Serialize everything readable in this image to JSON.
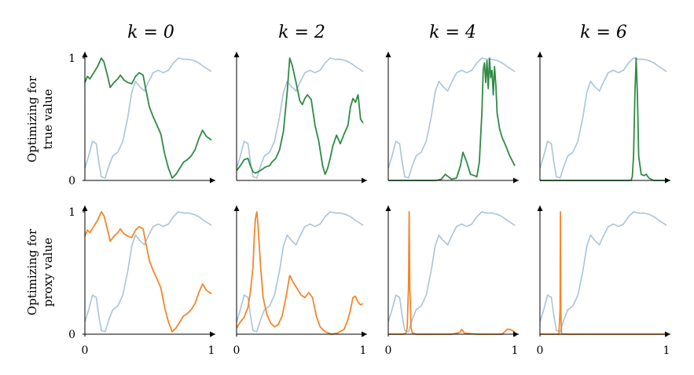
{
  "column_titles": [
    "k = 0",
    "k = 2",
    "k = 4",
    "k = 6"
  ],
  "row_labels": [
    {
      "line1": "Optimizing for",
      "line2": "true value"
    },
    {
      "line1": "Optimizing for",
      "line2": "proxy value"
    }
  ],
  "y_ticks": [
    "1",
    "0"
  ],
  "x_ticks": [
    "0",
    "1"
  ],
  "colors": {
    "reference": "#a9c4d8",
    "true_value": "#2e8b45",
    "proxy_value": "#f5862a",
    "axis": "#000000"
  },
  "chart_data": {
    "type": "line",
    "layout": "2x4 small multiples",
    "xlim": [
      0,
      1
    ],
    "ylim": [
      0,
      1
    ],
    "reference_curve": {
      "x": [
        0,
        0.03,
        0.06,
        0.09,
        0.11,
        0.13,
        0.16,
        0.19,
        0.22,
        0.26,
        0.3,
        0.34,
        0.37,
        0.4,
        0.43,
        0.47,
        0.5,
        0.54,
        0.58,
        0.62,
        0.66,
        0.7,
        0.74,
        0.78,
        0.82,
        0.86,
        0.9,
        0.94,
        0.97,
        1.0
      ],
      "y": [
        0.1,
        0.2,
        0.32,
        0.3,
        0.15,
        0.03,
        0.02,
        0.12,
        0.2,
        0.23,
        0.32,
        0.52,
        0.72,
        0.81,
        0.77,
        0.73,
        0.8,
        0.88,
        0.9,
        0.88,
        0.9,
        0.96,
        1.0,
        0.99,
        0.99,
        0.98,
        0.96,
        0.93,
        0.91,
        0.89
      ]
    },
    "panels": [
      {
        "row": 0,
        "col": 0,
        "name": "true value, k = 0",
        "x": [
          0,
          0.02,
          0.04,
          0.07,
          0.1,
          0.13,
          0.15,
          0.18,
          0.2,
          0.23,
          0.26,
          0.28,
          0.31,
          0.34,
          0.37,
          0.4,
          0.43,
          0.46,
          0.48,
          0.51,
          0.54,
          0.57,
          0.6,
          0.63,
          0.66,
          0.69,
          0.72,
          0.75,
          0.78,
          0.81,
          0.84,
          0.87,
          0.9,
          0.93,
          0.96,
          1.0
        ],
        "y": [
          0.8,
          0.85,
          0.83,
          0.88,
          0.93,
          1.0,
          0.97,
          0.85,
          0.76,
          0.8,
          0.83,
          0.86,
          0.82,
          0.8,
          0.79,
          0.85,
          0.88,
          0.86,
          0.75,
          0.6,
          0.52,
          0.45,
          0.38,
          0.22,
          0.1,
          0.02,
          0.05,
          0.1,
          0.15,
          0.17,
          0.2,
          0.25,
          0.34,
          0.41,
          0.36,
          0.33
        ]
      },
      {
        "row": 0,
        "col": 1,
        "name": "true value, k = 2",
        "x": [
          0,
          0.03,
          0.06,
          0.09,
          0.11,
          0.13,
          0.15,
          0.17,
          0.2,
          0.23,
          0.26,
          0.28,
          0.31,
          0.34,
          0.37,
          0.4,
          0.42,
          0.44,
          0.47,
          0.5,
          0.52,
          0.54,
          0.56,
          0.59,
          0.62,
          0.65,
          0.68,
          0.7,
          0.72,
          0.74,
          0.76,
          0.79,
          0.82,
          0.85,
          0.88,
          0.9,
          0.92,
          0.94,
          0.96,
          0.98,
          1.0
        ],
        "y": [
          0.08,
          0.12,
          0.17,
          0.18,
          0.12,
          0.07,
          0.06,
          0.07,
          0.09,
          0.11,
          0.12,
          0.15,
          0.18,
          0.25,
          0.4,
          0.72,
          1.0,
          0.94,
          0.8,
          0.65,
          0.62,
          0.67,
          0.7,
          0.66,
          0.45,
          0.32,
          0.12,
          0.05,
          0.1,
          0.18,
          0.28,
          0.37,
          0.3,
          0.38,
          0.45,
          0.6,
          0.67,
          0.64,
          0.7,
          0.5,
          0.47
        ]
      },
      {
        "row": 0,
        "col": 2,
        "name": "true value, k = 4",
        "x": [
          0,
          0.1,
          0.2,
          0.3,
          0.38,
          0.42,
          0.45,
          0.5,
          0.54,
          0.57,
          0.59,
          0.62,
          0.65,
          0.68,
          0.7,
          0.72,
          0.74,
          0.75,
          0.76,
          0.77,
          0.78,
          0.79,
          0.8,
          0.81,
          0.82,
          0.83,
          0.84,
          0.85,
          0.86,
          0.88,
          0.9,
          0.93,
          0.96,
          1.0
        ],
        "y": [
          0,
          0,
          0,
          0,
          0,
          0.01,
          0.05,
          0.01,
          0.02,
          0.12,
          0.23,
          0.15,
          0.05,
          0.04,
          0.03,
          0.15,
          0.55,
          0.9,
          0.96,
          0.8,
          0.98,
          0.75,
          1.0,
          0.84,
          0.9,
          0.7,
          0.93,
          0.78,
          0.55,
          0.42,
          0.35,
          0.28,
          0.2,
          0.12
        ]
      },
      {
        "row": 0,
        "col": 3,
        "name": "true value, k = 6",
        "x": [
          0,
          0.2,
          0.4,
          0.6,
          0.7,
          0.72,
          0.73,
          0.74,
          0.75,
          0.76,
          0.77,
          0.78,
          0.8,
          0.82,
          0.84,
          0.86,
          0.9,
          1.0
        ],
        "y": [
          0,
          0,
          0,
          0,
          0,
          0,
          0.03,
          0.2,
          0.7,
          1.0,
          0.7,
          0.2,
          0.05,
          0.04,
          0.05,
          0.02,
          0,
          0
        ]
      },
      {
        "row": 1,
        "col": 0,
        "name": "proxy value, k = 0",
        "x": [
          0,
          0.02,
          0.04,
          0.07,
          0.1,
          0.13,
          0.15,
          0.18,
          0.2,
          0.23,
          0.26,
          0.28,
          0.31,
          0.34,
          0.37,
          0.4,
          0.43,
          0.46,
          0.48,
          0.51,
          0.54,
          0.57,
          0.6,
          0.63,
          0.66,
          0.69,
          0.72,
          0.75,
          0.78,
          0.81,
          0.84,
          0.87,
          0.9,
          0.93,
          0.96,
          1.0
        ],
        "y": [
          0.8,
          0.85,
          0.83,
          0.88,
          0.93,
          1.0,
          0.97,
          0.85,
          0.76,
          0.8,
          0.83,
          0.86,
          0.82,
          0.8,
          0.79,
          0.85,
          0.88,
          0.86,
          0.75,
          0.6,
          0.52,
          0.45,
          0.38,
          0.22,
          0.1,
          0.02,
          0.05,
          0.1,
          0.15,
          0.17,
          0.2,
          0.25,
          0.34,
          0.41,
          0.36,
          0.33
        ]
      },
      {
        "row": 1,
        "col": 1,
        "name": "proxy value, k = 2",
        "x": [
          0,
          0.03,
          0.06,
          0.09,
          0.11,
          0.13,
          0.14,
          0.15,
          0.16,
          0.17,
          0.19,
          0.21,
          0.24,
          0.27,
          0.3,
          0.33,
          0.36,
          0.39,
          0.42,
          0.45,
          0.48,
          0.51,
          0.54,
          0.57,
          0.6,
          0.63,
          0.66,
          0.7,
          0.75,
          0.8,
          0.85,
          0.88,
          0.9,
          0.92,
          0.94,
          0.96,
          0.98,
          1.0
        ],
        "y": [
          0.05,
          0.1,
          0.14,
          0.22,
          0.35,
          0.55,
          0.8,
          0.95,
          1.0,
          0.88,
          0.55,
          0.3,
          0.16,
          0.09,
          0.06,
          0.08,
          0.15,
          0.3,
          0.48,
          0.42,
          0.37,
          0.32,
          0.3,
          0.34,
          0.3,
          0.15,
          0.06,
          0.02,
          0,
          0.01,
          0.04,
          0.12,
          0.2,
          0.3,
          0.31,
          0.26,
          0.24,
          0.25
        ]
      },
      {
        "row": 1,
        "col": 2,
        "name": "proxy value, k = 4",
        "x": [
          0,
          0.12,
          0.14,
          0.15,
          0.16,
          0.165,
          0.17,
          0.18,
          0.19,
          0.22,
          0.3,
          0.4,
          0.5,
          0.55,
          0.57,
          0.58,
          0.6,
          0.7,
          0.8,
          0.9,
          0.94,
          0.96,
          0.98,
          1.0
        ],
        "y": [
          0,
          0,
          0.01,
          0.05,
          0.4,
          1.0,
          0.4,
          0.05,
          0.01,
          0,
          0,
          0,
          0,
          0.01,
          0.02,
          0.04,
          0.01,
          0,
          0,
          0,
          0.04,
          0.04,
          0.03,
          0.02
        ]
      },
      {
        "row": 1,
        "col": 3,
        "name": "proxy value, k = 6",
        "x": [
          0,
          0.15,
          0.159,
          0.162,
          0.165,
          0.17,
          0.3,
          0.5,
          0.7,
          0.9,
          1.0
        ],
        "y": [
          0,
          0,
          0.2,
          1.0,
          0.2,
          0,
          0,
          0,
          0,
          0,
          0
        ]
      }
    ]
  }
}
